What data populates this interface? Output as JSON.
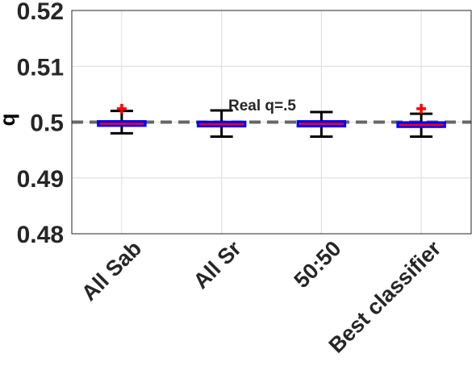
{
  "chart_data": {
    "type": "box",
    "ylabel": "q",
    "ylim": [
      0.48,
      0.52
    ],
    "yticks": [
      "0.48",
      "0.49",
      "0.5",
      "0.51",
      "0.52"
    ],
    "ytick_values": [
      0.48,
      0.49,
      0.5,
      0.51,
      0.52
    ],
    "grid": true,
    "categories": [
      "All Sab",
      "All Sr",
      "50:50",
      "Best classifier"
    ],
    "boxes": [
      {
        "q1": 0.4994,
        "median": 0.4997,
        "q3": 0.5001,
        "whisker_low": 0.498,
        "whisker_high": 0.502,
        "outliers": [
          0.5024
        ]
      },
      {
        "q1": 0.4993,
        "median": 0.4996,
        "q3": 0.5,
        "whisker_low": 0.4974,
        "whisker_high": 0.5021,
        "outliers": []
      },
      {
        "q1": 0.4993,
        "median": 0.4997,
        "q3": 0.5001,
        "whisker_low": 0.4974,
        "whisker_high": 0.5018,
        "outliers": []
      },
      {
        "q1": 0.4992,
        "median": 0.4995,
        "q3": 0.4999,
        "whisker_low": 0.4974,
        "whisker_high": 0.5015,
        "outliers": [
          0.5024
        ]
      }
    ],
    "reference_line": {
      "value": 0.5,
      "label": "Real q=.5"
    },
    "colors": {
      "box": "#0000ff",
      "median": "#ff0000",
      "whisker": "#000000",
      "outlier": "#ff0000",
      "reference": "#666666",
      "grid": "#dcdcdc"
    }
  }
}
